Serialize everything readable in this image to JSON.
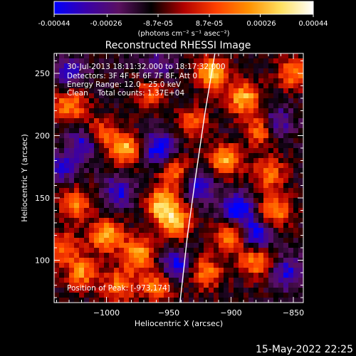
{
  "colorbar": {
    "tick_labels": [
      "-0.00044",
      "-0.00026",
      "-8.7e-05",
      "8.7e-05",
      "0.00026",
      "0.00044"
    ],
    "tick_values": [
      -0.00044,
      -0.00026,
      -8.7e-05,
      8.7e-05,
      0.00026,
      0.00044
    ],
    "range": [
      -0.00044,
      0.00044
    ],
    "unit_label": "(photons cm⁻² s⁻¹ asec⁻²)",
    "colors": [
      "#0000ff",
      "#3a00a8",
      "#5a1060",
      "#000000",
      "#b00000",
      "#ff4000",
      "#ff9000",
      "#ffe060",
      "#ffffff"
    ]
  },
  "overlay": {
    "time": "30-Jul-2013 18:11:32.000 to 18:17:32.000",
    "detectors": "Detectors: 3F 4F 5F 6F 7F 8F, Att 0",
    "energy": "Energy Range: 12.0 - 25.0 keV",
    "clean": "Clean    Total counts: 1.37E+04",
    "peak": "Position of Peak: [-973,174]"
  },
  "footer": {
    "date": "15-May-2022 22:25"
  },
  "chart_data": {
    "type": "heatmap",
    "title": "Reconstructed RHESSI Image",
    "xlabel": "Heliocentric X (arcsec)",
    "ylabel": "Heliocentric Y (arcsec)",
    "xlim": [
      -1042,
      -842
    ],
    "ylim": [
      66,
      266
    ],
    "xticks": [
      -1000,
      -950,
      -900,
      -850
    ],
    "xtick_labels": [
      "−1000",
      "−950",
      "−900",
      "−850"
    ],
    "yticks": [
      100,
      150,
      200,
      250
    ],
    "ytick_labels": [
      "100",
      "150",
      "200",
      "250"
    ],
    "value_range": [
      -0.00044,
      0.00044
    ],
    "peak": {
      "x": -973,
      "y": 174
    },
    "limb_curve": {
      "x": [
        -941,
        -935,
        -928,
        -921,
        -913
      ],
      "y": [
        66,
        120,
        170,
        218,
        266
      ]
    },
    "hot_spots": [
      {
        "x": -1030,
        "y": 225,
        "v": 0.00035
      },
      {
        "x": -1008,
        "y": 200,
        "v": 0.00042
      },
      {
        "x": -985,
        "y": 190,
        "v": 0.0004
      },
      {
        "x": -1025,
        "y": 145,
        "v": 0.0003
      },
      {
        "x": -1000,
        "y": 120,
        "v": 0.0004
      },
      {
        "x": -975,
        "y": 105,
        "v": 0.00038
      },
      {
        "x": -1020,
        "y": 90,
        "v": 0.00032
      },
      {
        "x": -955,
        "y": 145,
        "v": 0.00044
      },
      {
        "x": -945,
        "y": 130,
        "v": 0.0004
      },
      {
        "x": -945,
        "y": 170,
        "v": 0.00028
      },
      {
        "x": -915,
        "y": 250,
        "v": 0.00042
      },
      {
        "x": -890,
        "y": 230,
        "v": 0.0004
      },
      {
        "x": -875,
        "y": 205,
        "v": 0.00036
      },
      {
        "x": -905,
        "y": 180,
        "v": 0.00038
      },
      {
        "x": -870,
        "y": 170,
        "v": 0.0003
      },
      {
        "x": -900,
        "y": 120,
        "v": 0.00038
      },
      {
        "x": -880,
        "y": 100,
        "v": 0.00036
      },
      {
        "x": -865,
        "y": 140,
        "v": 0.00034
      },
      {
        "x": -920,
        "y": 90,
        "v": 0.0003
      },
      {
        "x": -960,
        "y": 80,
        "v": 0.00032
      },
      {
        "x": -990,
        "y": 80,
        "v": 0.0003
      },
      {
        "x": -1035,
        "y": 110,
        "v": 0.00028
      },
      {
        "x": -850,
        "y": 250,
        "v": 0.0003
      },
      {
        "x": -930,
        "y": 210,
        "v": 0.00026
      },
      {
        "x": -965,
        "y": 235,
        "v": 0.00024
      }
    ],
    "cold_spots": [
      {
        "x": -1015,
        "y": 195,
        "v": -0.00044
      },
      {
        "x": -958,
        "y": 190,
        "v": -0.00035
      },
      {
        "x": -895,
        "y": 140,
        "v": -0.0004
      },
      {
        "x": -880,
        "y": 120,
        "v": -0.00038
      },
      {
        "x": -945,
        "y": 95,
        "v": -0.0003
      },
      {
        "x": -865,
        "y": 210,
        "v": -0.0003
      },
      {
        "x": -1030,
        "y": 250,
        "v": -0.00025
      },
      {
        "x": -990,
        "y": 155,
        "v": -0.00026
      },
      {
        "x": -925,
        "y": 160,
        "v": -0.00028
      },
      {
        "x": -1035,
        "y": 175,
        "v": -0.00022
      },
      {
        "x": -855,
        "y": 90,
        "v": -0.00026
      },
      {
        "x": -960,
        "y": 255,
        "v": -0.0002
      }
    ]
  }
}
